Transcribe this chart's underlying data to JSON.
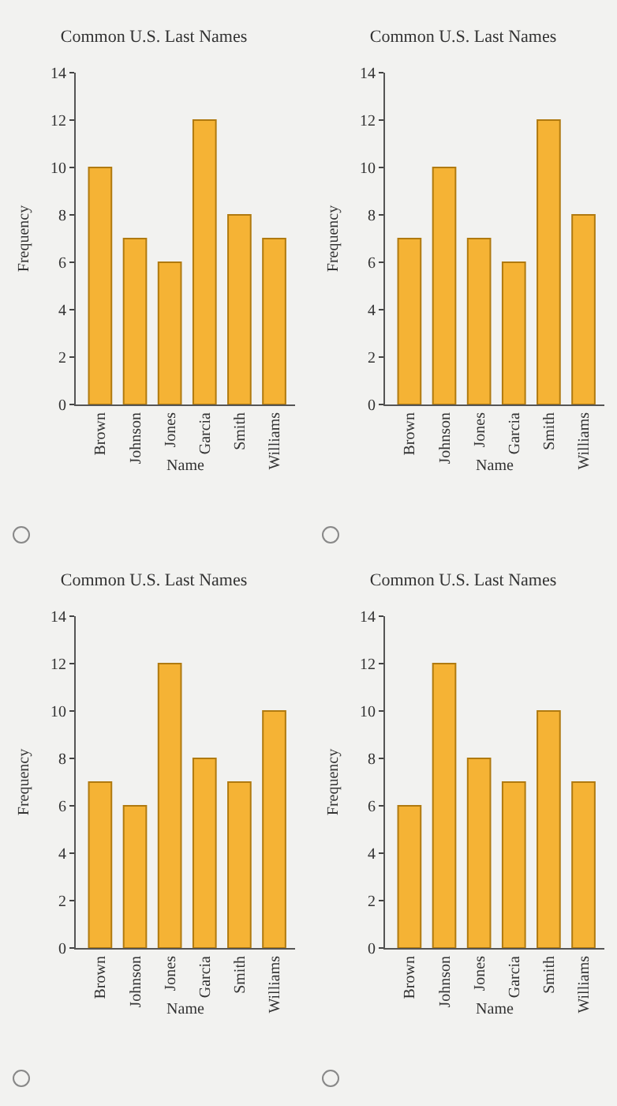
{
  "chart_data": [
    {
      "type": "bar",
      "title": "Common U.S. Last Names",
      "xlabel": "Name",
      "ylabel": "Frequency",
      "categories": [
        "Brown",
        "Johnson",
        "Jones",
        "Garcia",
        "Smith",
        "Williams"
      ],
      "values": [
        10,
        7,
        6,
        12,
        8,
        7
      ],
      "color": "#f5b335",
      "ylim": [
        0,
        14
      ],
      "yticks": [
        0,
        2,
        4,
        6,
        8,
        10,
        12,
        14
      ]
    },
    {
      "type": "bar",
      "title": "Common U.S. Last Names",
      "xlabel": "Name",
      "ylabel": "Frequency",
      "categories": [
        "Brown",
        "Johnson",
        "Jones",
        "Garcia",
        "Smith",
        "Williams"
      ],
      "values": [
        7,
        10,
        7,
        6,
        12,
        8
      ],
      "color": "#f5b335",
      "ylim": [
        0,
        14
      ],
      "yticks": [
        0,
        2,
        4,
        6,
        8,
        10,
        12,
        14
      ]
    },
    {
      "type": "bar",
      "title": "Common U.S. Last Names",
      "xlabel": "Name",
      "ylabel": "Frequency",
      "categories": [
        "Brown",
        "Johnson",
        "Jones",
        "Garcia",
        "Smith",
        "Williams"
      ],
      "values": [
        7,
        6,
        12,
        8,
        7,
        10
      ],
      "color": "#f5b335",
      "ylim": [
        0,
        14
      ],
      "yticks": [
        0,
        2,
        4,
        6,
        8,
        10,
        12,
        14
      ]
    },
    {
      "type": "bar",
      "title": "Common U.S. Last Names",
      "xlabel": "Name",
      "ylabel": "Frequency",
      "categories": [
        "Brown",
        "Johnson",
        "Jones",
        "Garcia",
        "Smith",
        "Williams"
      ],
      "values": [
        6,
        12,
        8,
        7,
        10,
        7
      ],
      "color": "#f5b335",
      "ylim": [
        0,
        14
      ],
      "yticks": [
        0,
        2,
        4,
        6,
        8,
        10,
        12,
        14
      ]
    }
  ]
}
